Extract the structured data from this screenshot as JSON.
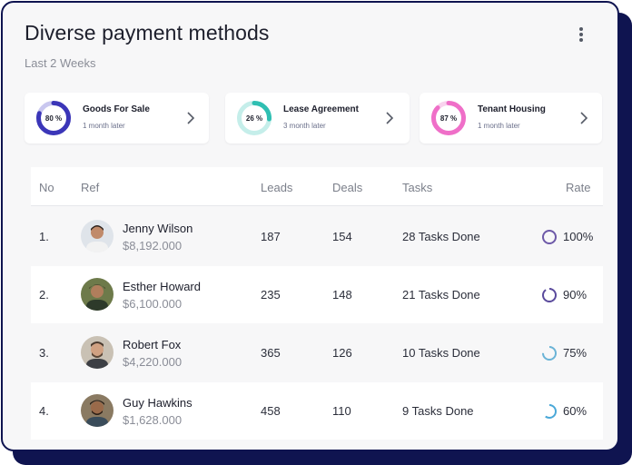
{
  "header": {
    "title": "Diverse payment methods",
    "subtitle": "Last 2 Weeks",
    "menu_icon": "more-vertical-icon"
  },
  "summaries": [
    {
      "label": "Goods For Sale",
      "sub": "1 month later",
      "percent": 80,
      "percent_label": "80 %",
      "color": "#3b36b8",
      "track": "#c9c7ef"
    },
    {
      "label": "Lease Agreement",
      "sub": "3 month later",
      "percent": 26,
      "percent_label": "26 %",
      "color": "#2fbfb2",
      "track": "#c5eeea"
    },
    {
      "label": "Tenant Housing",
      "sub": "1 month later",
      "percent": 87,
      "percent_label": "87 %",
      "color": "#ef6fc8",
      "track": "#f9d3ee"
    }
  ],
  "table": {
    "columns": {
      "no": "No",
      "ref": "Ref",
      "leads": "Leads",
      "deals": "Deals",
      "tasks": "Tasks",
      "rate": "Rate"
    },
    "rows": [
      {
        "no": "1.",
        "name": "Jenny Wilson",
        "amount": "$8,192.000",
        "leads": "187",
        "deals": "154",
        "tasks": "28 Tasks Done",
        "rate": "100%",
        "rate_value": 100,
        "ring_color": "#6d59a8",
        "avatar": "jenny-wilson-avatar"
      },
      {
        "no": "2.",
        "name": "Esther Howard",
        "amount": "$6,100.000",
        "leads": "235",
        "deals": "148",
        "tasks": "21 Tasks Done",
        "rate": "90%",
        "rate_value": 90,
        "ring_color": "#5a4a9c",
        "avatar": "esther-howard-avatar"
      },
      {
        "no": "3.",
        "name": "Robert Fox",
        "amount": "$4,220.000",
        "leads": "365",
        "deals": "126",
        "tasks": "10 Tasks Done",
        "rate": "75%",
        "rate_value": 75,
        "ring_color": "#6ab3d6",
        "avatar": "robert-fox-avatar"
      },
      {
        "no": "4.",
        "name": "Guy Hawkins",
        "amount": "$1,628.000",
        "leads": "458",
        "deals": "110",
        "tasks": "9 Tasks Done",
        "rate": "60%",
        "rate_value": 60,
        "ring_color": "#4aa8d8",
        "avatar": "guy-hawkins-avatar"
      }
    ]
  }
}
